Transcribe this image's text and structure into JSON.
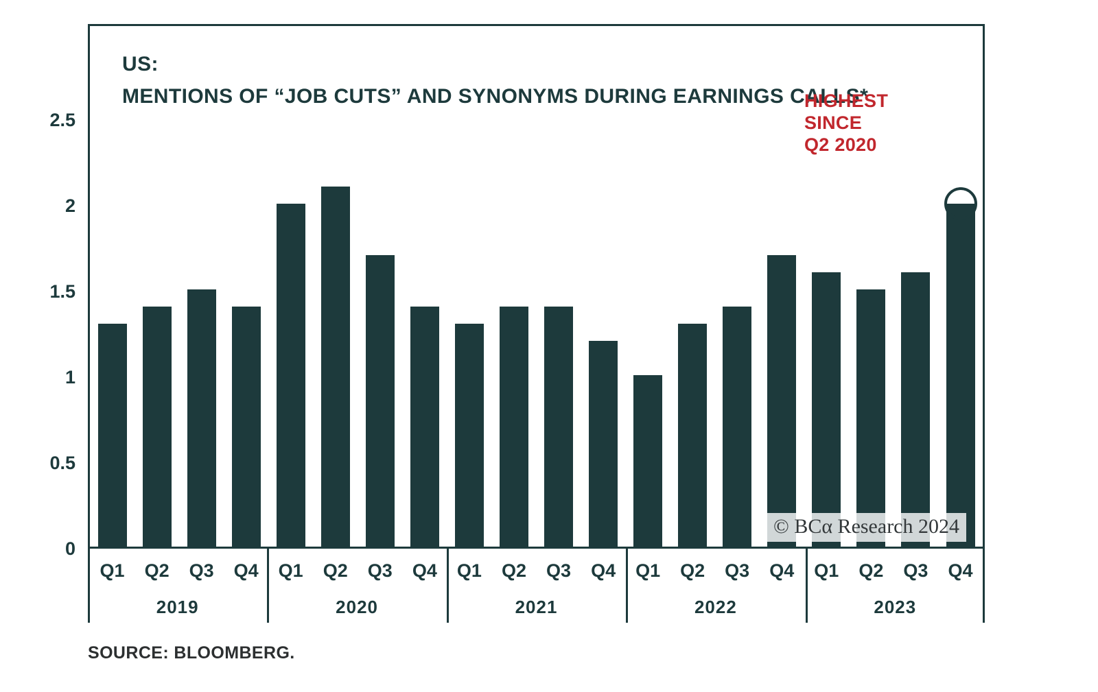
{
  "chart_data": {
    "type": "bar",
    "title_line1": "US:",
    "title_line2": "MENTIONS OF “JOB CUTS” AND SYNONYMS DURING EARNINGS CALLS*",
    "ylim": [
      0,
      2.5
    ],
    "ytick_labels": [
      "2.5",
      "2",
      "1.5",
      "1",
      "0.5",
      "0"
    ],
    "grid": false,
    "bar_color": "#1d3a3c",
    "years": [
      {
        "year": "2019",
        "quarters": [
          "Q1",
          "Q2",
          "Q3",
          "Q4"
        ],
        "values": [
          1.3,
          1.4,
          1.5,
          1.4
        ]
      },
      {
        "year": "2020",
        "quarters": [
          "Q1",
          "Q2",
          "Q3",
          "Q4"
        ],
        "values": [
          2.0,
          2.1,
          1.7,
          1.4
        ]
      },
      {
        "year": "2021",
        "quarters": [
          "Q1",
          "Q2",
          "Q3",
          "Q4"
        ],
        "values": [
          1.3,
          1.4,
          1.4,
          1.2
        ]
      },
      {
        "year": "2022",
        "quarters": [
          "Q1",
          "Q2",
          "Q3",
          "Q4"
        ],
        "values": [
          1.0,
          1.3,
          1.4,
          1.7
        ]
      },
      {
        "year": "2023",
        "quarters": [
          "Q1",
          "Q2",
          "Q3",
          "Q4"
        ],
        "values": [
          1.6,
          1.5,
          1.6,
          2.0
        ]
      }
    ],
    "annotation": {
      "lines": [
        "HIGHEST",
        "SINCE",
        "Q2 2020"
      ],
      "color": "#c1272d",
      "highlight": {
        "year": "2023",
        "quarter": "Q4"
      }
    },
    "watermark": "© BCα Research 2024",
    "source": "SOURCE: BLOOMBERG."
  }
}
